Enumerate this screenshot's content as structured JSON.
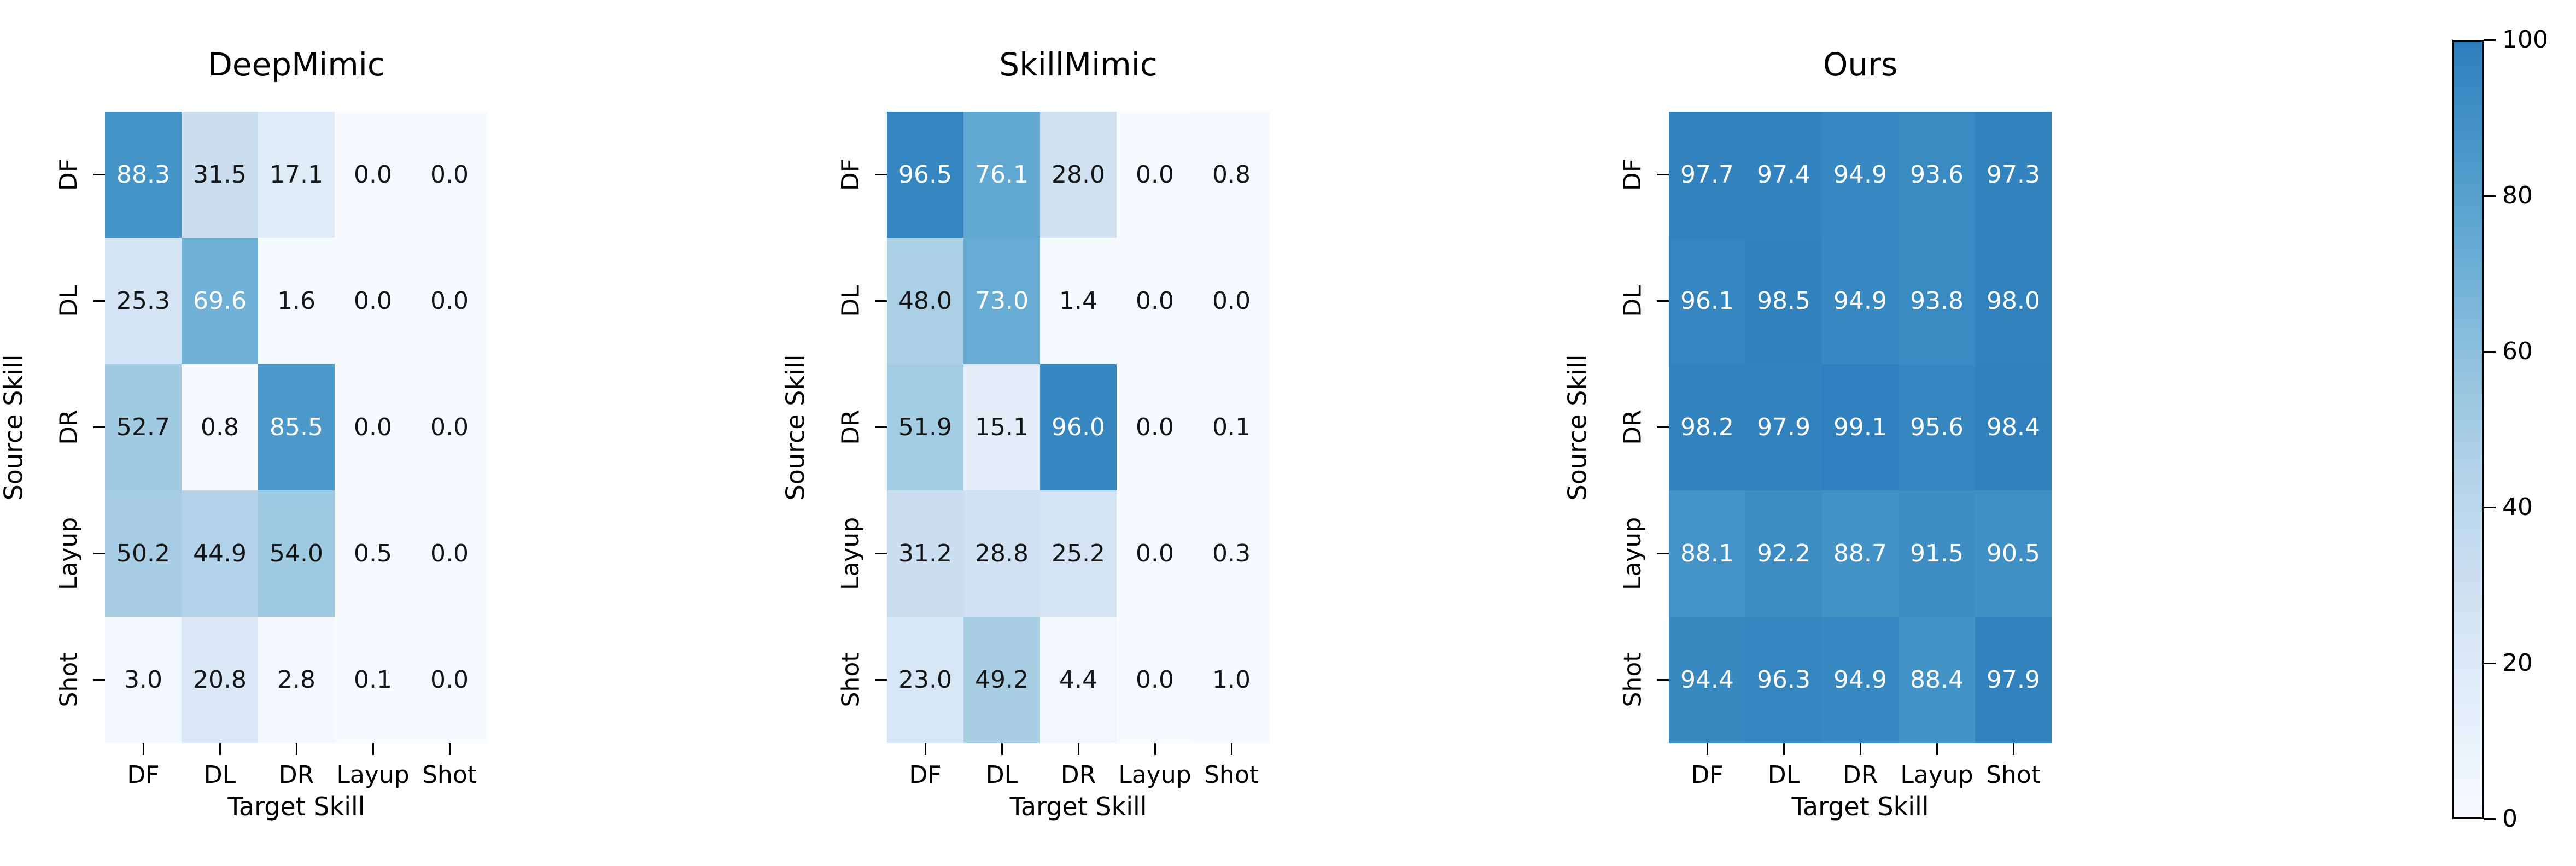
{
  "chart_data": [
    {
      "type": "heatmap",
      "title": "DeepMimic",
      "xlabel": "Target Skill",
      "ylabel": "Source Skill",
      "x_categories": [
        "DF",
        "DL",
        "DR",
        "Layup",
        "Shot"
      ],
      "y_categories": [
        "DF",
        "DL",
        "DR",
        "Layup",
        "Shot"
      ],
      "values": [
        [
          88.3,
          31.5,
          17.1,
          0.0,
          0.0
        ],
        [
          25.3,
          69.6,
          1.6,
          0.0,
          0.0
        ],
        [
          52.7,
          0.8,
          85.5,
          0.0,
          0.0
        ],
        [
          50.2,
          44.9,
          54.0,
          0.5,
          0.0
        ],
        [
          3.0,
          20.8,
          2.8,
          0.1,
          0.0
        ]
      ],
      "vmin": 0,
      "vmax": 100
    },
    {
      "type": "heatmap",
      "title": "SkillMimic",
      "xlabel": "Target Skill",
      "ylabel": "Source Skill",
      "x_categories": [
        "DF",
        "DL",
        "DR",
        "Layup",
        "Shot"
      ],
      "y_categories": [
        "DF",
        "DL",
        "DR",
        "Layup",
        "Shot"
      ],
      "values": [
        [
          96.5,
          76.1,
          28.0,
          0.0,
          0.8
        ],
        [
          48.0,
          73.0,
          1.4,
          0.0,
          0.0
        ],
        [
          51.9,
          15.1,
          96.0,
          0.0,
          0.1
        ],
        [
          31.2,
          28.8,
          25.2,
          0.0,
          0.3
        ],
        [
          23.0,
          49.2,
          4.4,
          0.0,
          1.0
        ]
      ],
      "vmin": 0,
      "vmax": 100
    },
    {
      "type": "heatmap",
      "title": "Ours",
      "xlabel": "Target Skill",
      "ylabel": "Source Skill",
      "x_categories": [
        "DF",
        "DL",
        "DR",
        "Layup",
        "Shot"
      ],
      "y_categories": [
        "DF",
        "DL",
        "DR",
        "Layup",
        "Shot"
      ],
      "values": [
        [
          97.7,
          97.4,
          94.9,
          93.6,
          97.3
        ],
        [
          96.1,
          98.5,
          94.9,
          93.8,
          98.0
        ],
        [
          98.2,
          97.9,
          99.1,
          95.6,
          98.4
        ],
        [
          88.1,
          92.2,
          88.7,
          91.5,
          90.5
        ],
        [
          94.4,
          96.3,
          94.9,
          88.4,
          97.9
        ]
      ],
      "vmin": 0,
      "vmax": 100
    }
  ],
  "colorbar": {
    "min": 0,
    "max": 100,
    "ticks": [
      "0",
      "20",
      "40",
      "60",
      "80",
      "100"
    ],
    "colormap": "Blues (truncated at 0.7)",
    "top_color": "#2E7EBC",
    "bottom_color": "#F7FBFF"
  },
  "style": {
    "background": "#ffffff",
    "text_dark": "#151515",
    "text_light": "#ffffff",
    "white_text_threshold": 60
  }
}
